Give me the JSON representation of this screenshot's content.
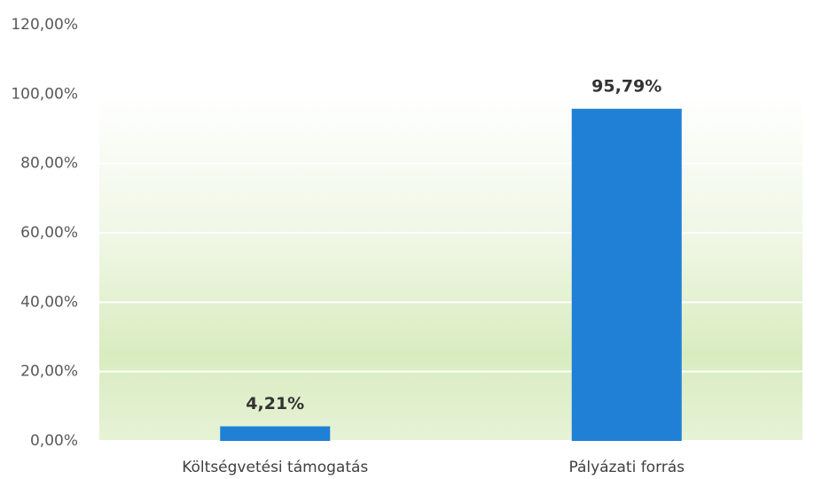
{
  "chart_data": {
    "type": "bar",
    "categories": [
      "Költségvetési támogatás",
      "Pályázati forrás"
    ],
    "values": [
      4.21,
      95.79
    ],
    "value_labels": [
      "4,21%",
      "95,79%"
    ],
    "color": "#1f80d6",
    "ylim": [
      0,
      120
    ],
    "yticks": [
      {
        "value": 0,
        "label": "0,00%"
      },
      {
        "value": 20,
        "label": "20,00%"
      },
      {
        "value": 40,
        "label": "40,00%"
      },
      {
        "value": 60,
        "label": "60,00%"
      },
      {
        "value": 80,
        "label": "80,00%"
      },
      {
        "value": 100,
        "label": "100,00%"
      },
      {
        "value": 120,
        "label": "120,00%"
      }
    ],
    "grid": true
  }
}
